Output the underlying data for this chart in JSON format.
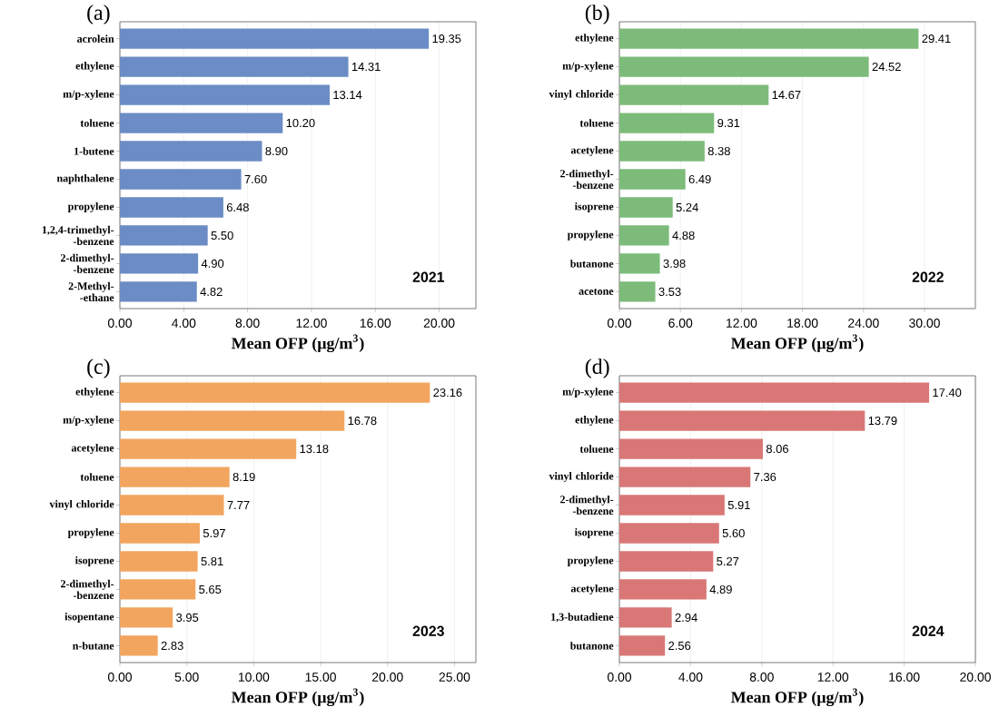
{
  "chart_data": [
    {
      "type": "bar",
      "orientation": "horizontal",
      "title": "(a)",
      "xlabel": "Mean OFP (μg/m$^{3}$)",
      "annotations": [
        "2021"
      ],
      "color": "#6b8cc4",
      "grid": "x",
      "categories": [
        "acrolein",
        "ethylene",
        "m/p-xylene",
        "toluene",
        "1-butene",
        "naphthalene",
        "propylene",
        "1,2,4-trimethyl- -benzene",
        "2-dimethyl- -benzene",
        "2-Methyl- -ethane"
      ],
      "values": [
        19.35,
        14.31,
        13.14,
        10.2,
        8.9,
        7.6,
        6.48,
        5.5,
        4.9,
        4.82
      ],
      "value_labels": [
        "19.35",
        "14.31",
        "13.14",
        "10.20",
        "8.90",
        "7.60",
        "6.48",
        "5.50",
        "4.90",
        "4.82"
      ],
      "xlim": [
        0,
        22.3
      ],
      "xticks": [
        {
          "value": 0,
          "label": "0.00"
        },
        {
          "value": 4,
          "label": "4.00"
        },
        {
          "value": 8,
          "label": "8.00"
        },
        {
          "value": 12,
          "label": "12.00"
        },
        {
          "value": 16,
          "label": "16.00"
        },
        {
          "value": 20,
          "label": "20.00"
        }
      ]
    },
    {
      "type": "bar",
      "orientation": "horizontal",
      "title": "(b)",
      "xlabel": "Mean OFP (μg/m$^{3}$)",
      "annotations": [
        "2022"
      ],
      "color": "#7dbb7a",
      "grid": "x",
      "categories": [
        "ethylene",
        "m/p-xylene",
        "vinyl chloride",
        "toluene",
        "acetylene",
        "2-dimethyl- -benzene",
        "isoprene",
        "propylene",
        "butanone",
        "acetone"
      ],
      "values": [
        29.41,
        24.52,
        14.67,
        9.31,
        8.38,
        6.49,
        5.24,
        4.88,
        3.98,
        3.53
      ],
      "value_labels": [
        "29.41",
        "24.52",
        "14.67",
        "9.31",
        "8.38",
        "6.49",
        "5.24",
        "4.88",
        "3.98",
        "3.53"
      ],
      "xlim": [
        0,
        35
      ],
      "xticks": [
        {
          "value": 0,
          "label": "0.00"
        },
        {
          "value": 6,
          "label": "6.00"
        },
        {
          "value": 12,
          "label": "12.00"
        },
        {
          "value": 18,
          "label": "18.00"
        },
        {
          "value": 24,
          "label": "24.00"
        },
        {
          "value": 30,
          "label": "30.00"
        }
      ]
    },
    {
      "type": "bar",
      "orientation": "horizontal",
      "title": "(c)",
      "xlabel": "Mean OFP (μg/m$^{3}$)",
      "annotations": [
        "2023"
      ],
      "color": "#f2a55e",
      "grid": "x",
      "categories": [
        "ethylene",
        "m/p-xylene",
        "acetylene",
        "toluene",
        "vinyl chloride",
        "propylene",
        "isoprene",
        "2-dimethyl- -benzene",
        "isopentane",
        "n-butane"
      ],
      "values": [
        23.16,
        16.78,
        13.18,
        8.19,
        7.77,
        5.97,
        5.81,
        5.65,
        3.95,
        2.83
      ],
      "value_labels": [
        "23.16",
        "16.78",
        "13.18",
        "8.19",
        "7.77",
        "5.97",
        "5.81",
        "5.65",
        "3.95",
        "2.83"
      ],
      "xlim": [
        0,
        26.6
      ],
      "xticks": [
        {
          "value": 0,
          "label": "0.00"
        },
        {
          "value": 5,
          "label": "5.00"
        },
        {
          "value": 10,
          "label": "10.00"
        },
        {
          "value": 15,
          "label": "15.00"
        },
        {
          "value": 20,
          "label": "20.00"
        },
        {
          "value": 25,
          "label": "25.00"
        }
      ]
    },
    {
      "type": "bar",
      "orientation": "horizontal",
      "title": "(d)",
      "xlabel": "Mean OFP (μg/m$^{3}$)",
      "annotations": [
        "2024"
      ],
      "color": "#d97777",
      "grid": "x",
      "categories": [
        "m/p-xylene",
        "ethylene",
        "toluene",
        "vinyl chloride",
        "2-dimethyl- -benzene",
        "isoprene",
        "propylene",
        "acetylene",
        "1,3-butadiene",
        "butanone"
      ],
      "values": [
        17.4,
        13.79,
        8.06,
        7.36,
        5.91,
        5.6,
        5.27,
        4.89,
        2.94,
        2.56
      ],
      "value_labels": [
        "17.40",
        "13.79",
        "8.06",
        "7.36",
        "5.91",
        "5.60",
        "5.27",
        "4.89",
        "2.94",
        "2.56"
      ],
      "xlim": [
        0,
        20
      ],
      "xticks": [
        {
          "value": 0,
          "label": "0.00"
        },
        {
          "value": 4,
          "label": "4.00"
        },
        {
          "value": 8,
          "label": "8.00"
        },
        {
          "value": 12,
          "label": "12.00"
        },
        {
          "value": 16,
          "label": "16.00"
        },
        {
          "value": 20,
          "label": "20.00"
        }
      ]
    }
  ]
}
